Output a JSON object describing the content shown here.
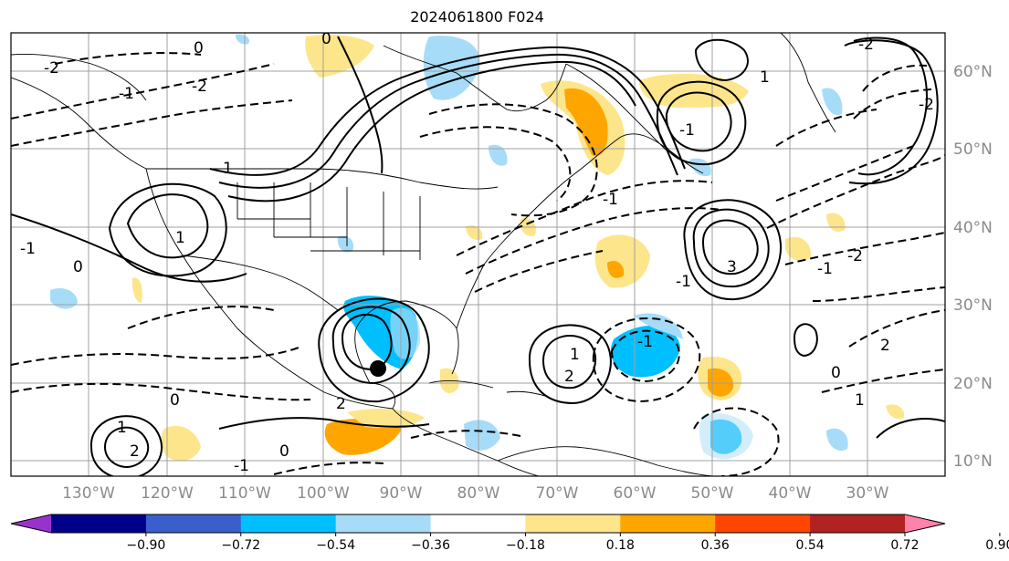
{
  "title": "2024061800 F024",
  "lon_ticks": [
    "130°W",
    "120°W",
    "110°W",
    "100°W",
    "90°W",
    "80°W",
    "70°W",
    "60°W",
    "50°W",
    "40°W",
    "30°W"
  ],
  "lat_ticks": [
    "60°N",
    "50°N",
    "40°N",
    "30°N",
    "20°N",
    "10°N"
  ],
  "colorbar": {
    "colors": [
      "#9932cc",
      "#00008b",
      "#3a5fcd",
      "#00bfff",
      "#a7dcf8",
      "#ffffff",
      "#fde58b",
      "#ffa500",
      "#ff4500",
      "#b22222",
      "#ff82ab"
    ],
    "tick_labels": [
      "−0.90",
      "−0.72",
      "−0.54",
      "−0.36",
      "−0.18",
      "0.18",
      "0.36",
      "0.54",
      "0.72",
      "0.90"
    ]
  },
  "contour_labels": [
    "0",
    "-2",
    "-1",
    "1",
    "-2",
    "1",
    "0",
    "-1",
    "1",
    "2",
    "-1",
    "0",
    "2",
    "3",
    "-1",
    "-2",
    "0",
    "1",
    "2",
    "-1",
    "1",
    "2",
    "0",
    "-1",
    "1",
    "0",
    "-2",
    "-1",
    "-2",
    "-1"
  ],
  "storm_marker": "filled-black-circle"
}
